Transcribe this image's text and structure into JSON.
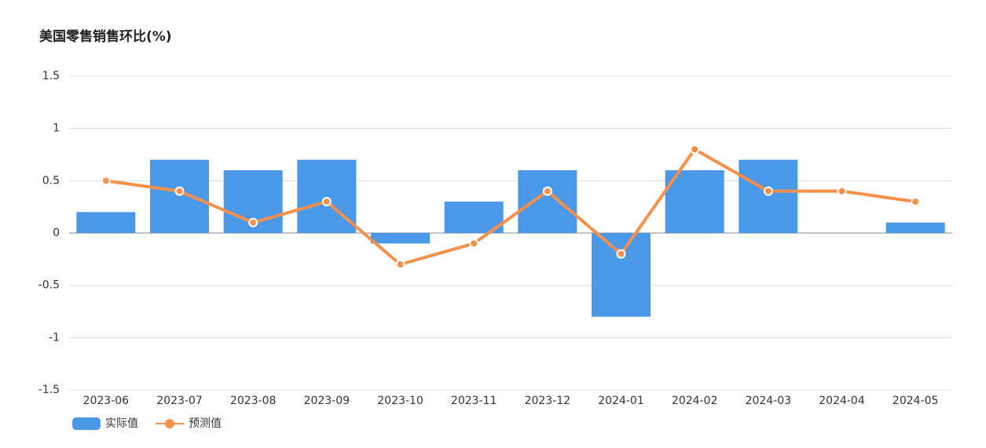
{
  "chart_data": {
    "type": "combo",
    "title": "美国零售销售环比(%)",
    "categories": [
      "2023-06",
      "2023-07",
      "2023-08",
      "2023-09",
      "2023-10",
      "2023-11",
      "2023-12",
      "2024-01",
      "2024-02",
      "2024-03",
      "2024-04",
      "2024-05"
    ],
    "series": [
      {
        "name": "实际值",
        "type": "bar",
        "color": "#4a98e8",
        "values": [
          0.2,
          0.7,
          0.6,
          0.7,
          -0.1,
          0.3,
          0.6,
          -0.8,
          0.6,
          0.7,
          null,
          0.1
        ]
      },
      {
        "name": "预测值",
        "type": "line",
        "color": "#f7904a",
        "values": [
          0.5,
          0.4,
          0.1,
          0.3,
          -0.3,
          -0.1,
          0.4,
          -0.2,
          0.8,
          0.4,
          0.4,
          0.3
        ]
      }
    ],
    "ylim": [
      -1.5,
      1.5
    ],
    "yticks": [
      -1.5,
      -1,
      -0.5,
      0,
      0.5,
      1,
      1.5
    ],
    "grid": true,
    "legend": "bottom-left"
  }
}
